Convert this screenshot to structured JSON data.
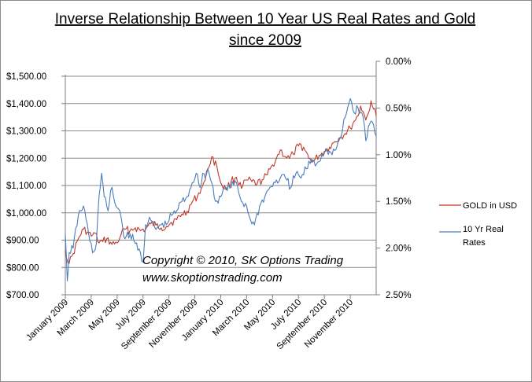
{
  "chart_data": {
    "type": "line",
    "title": [
      "Inverse Relationship Between 10 Year US Real Rates and Gold",
      "since 2009"
    ],
    "xlabel": "",
    "ylabel_left": "",
    "ylabel_right": "",
    "x_range": [
      0,
      24
    ],
    "ylim_left": [
      700,
      1500
    ],
    "ylim_right": [
      0.0,
      2.5
    ],
    "right_axis_inverted": true,
    "grid": "horizontal",
    "x_ticks": [
      {
        "t": 0,
        "label": "January 2009"
      },
      {
        "t": 2,
        "label": "March 2009"
      },
      {
        "t": 4,
        "label": "May 2009"
      },
      {
        "t": 6,
        "label": "July 2009"
      },
      {
        "t": 8,
        "label": "September 2009"
      },
      {
        "t": 10,
        "label": "November 2009"
      },
      {
        "t": 12,
        "label": "January 2010"
      },
      {
        "t": 14,
        "label": "March 2010"
      },
      {
        "t": 16,
        "label": "May 2010"
      },
      {
        "t": 18,
        "label": "July 2010"
      },
      {
        "t": 20,
        "label": "September 2010"
      },
      {
        "t": 22,
        "label": "November 2010"
      }
    ],
    "left_ticks": [
      "$700.00",
      "$800.00",
      "$900.00",
      "$1,000.00",
      "$1,100.00",
      "$1,200.00",
      "$1,300.00",
      "$1,400.00",
      "$1,500.00"
    ],
    "left_tick_values": [
      700,
      800,
      900,
      1000,
      1100,
      1200,
      1300,
      1400,
      1500
    ],
    "right_ticks": [
      "0.00%",
      "0.50%",
      "1.00%",
      "1.50%",
      "2.00%",
      "2.50%"
    ],
    "right_tick_values": [
      0.0,
      0.5,
      1.0,
      1.5,
      2.0,
      2.5
    ],
    "series": [
      {
        "name": "GOLD in USD",
        "axis": "left",
        "color": "#c0392b",
        "x": [
          0,
          0.3,
          0.6,
          1.0,
          1.4,
          1.7,
          2.0,
          2.3,
          2.6,
          2.9,
          3.2,
          3.6,
          4.0,
          4.3,
          4.6,
          5.0,
          5.4,
          5.8,
          6.2,
          6.6,
          7.0,
          7.4,
          7.8,
          8.2,
          8.6,
          9.0,
          9.4,
          9.8,
          10.2,
          10.5,
          10.8,
          11.0,
          11.3,
          11.7,
          12.0,
          12.4,
          12.8,
          13.2,
          13.6,
          14.0,
          14.4,
          14.8,
          15.2,
          15.6,
          16.0,
          16.3,
          16.6,
          17.0,
          17.3,
          17.6,
          18.0,
          18.4,
          18.8,
          19.2,
          19.6,
          20.0,
          20.4,
          20.8,
          21.2,
          21.6,
          22.0,
          22.3,
          22.6,
          22.8,
          23.0,
          23.2,
          23.4,
          23.6,
          23.8,
          24.0
        ],
        "values": [
          860,
          815,
          850,
          905,
          940,
          930,
          915,
          925,
          890,
          895,
          905,
          885,
          890,
          920,
          940,
          935,
          945,
          935,
          940,
          960,
          955,
          945,
          950,
          965,
          975,
          995,
          1005,
          1040,
          1060,
          1090,
          1120,
          1160,
          1205,
          1170,
          1110,
          1085,
          1115,
          1130,
          1090,
          1120,
          1115,
          1105,
          1120,
          1140,
          1175,
          1200,
          1230,
          1205,
          1200,
          1215,
          1245,
          1240,
          1200,
          1190,
          1210,
          1225,
          1240,
          1260,
          1275,
          1290,
          1310,
          1335,
          1355,
          1390,
          1370,
          1340,
          1365,
          1410,
          1380,
          1355
        ]
      },
      {
        "name": "10 Yr Real Rates",
        "axis": "right",
        "color": "#4a7ebb",
        "x": [
          0,
          0.15,
          0.3,
          0.6,
          1.0,
          1.4,
          1.8,
          2.1,
          2.4,
          2.6,
          2.8,
          3.0,
          3.3,
          3.6,
          3.9,
          4.2,
          4.4,
          4.6,
          5.0,
          5.4,
          5.8,
          6.0,
          6.2,
          6.6,
          7.0,
          7.4,
          7.8,
          8.2,
          8.6,
          9.0,
          9.4,
          9.8,
          10.1,
          10.4,
          10.6,
          10.8,
          11.0,
          11.3,
          11.6,
          12.0,
          12.4,
          12.8,
          13.2,
          13.6,
          14.0,
          14.3,
          14.6,
          15.0,
          15.4,
          15.8,
          16.2,
          16.6,
          17.0,
          17.4,
          17.8,
          18.2,
          18.6,
          19.0,
          19.4,
          19.8,
          20.2,
          20.6,
          21.0,
          21.3,
          21.6,
          22.0,
          22.3,
          22.6,
          23.0,
          23.2,
          23.4,
          23.7,
          24.0
        ],
        "values": [
          1.85,
          2.35,
          2.05,
          2.0,
          1.65,
          1.55,
          1.85,
          2.05,
          1.95,
          1.45,
          1.2,
          1.45,
          1.6,
          1.35,
          1.55,
          1.6,
          1.75,
          1.9,
          1.85,
          1.95,
          2.05,
          2.15,
          1.75,
          1.7,
          1.8,
          1.75,
          1.75,
          1.65,
          1.6,
          1.5,
          1.45,
          1.3,
          1.2,
          1.35,
          1.2,
          1.25,
          1.15,
          1.3,
          1.5,
          1.45,
          1.35,
          1.35,
          1.3,
          1.5,
          1.55,
          1.7,
          1.75,
          1.55,
          1.45,
          1.35,
          1.3,
          1.25,
          1.25,
          1.35,
          1.2,
          1.25,
          1.15,
          1.05,
          1.1,
          1.0,
          0.95,
          1.0,
          0.9,
          0.8,
          0.6,
          0.4,
          0.55,
          0.5,
          0.6,
          0.85,
          0.7,
          0.65,
          0.8
        ]
      }
    ],
    "annotations": [
      "Copyright © 2010, SK Options Trading",
      "www.skoptionstrading.com"
    ],
    "legend": {
      "position": "right"
    }
  }
}
